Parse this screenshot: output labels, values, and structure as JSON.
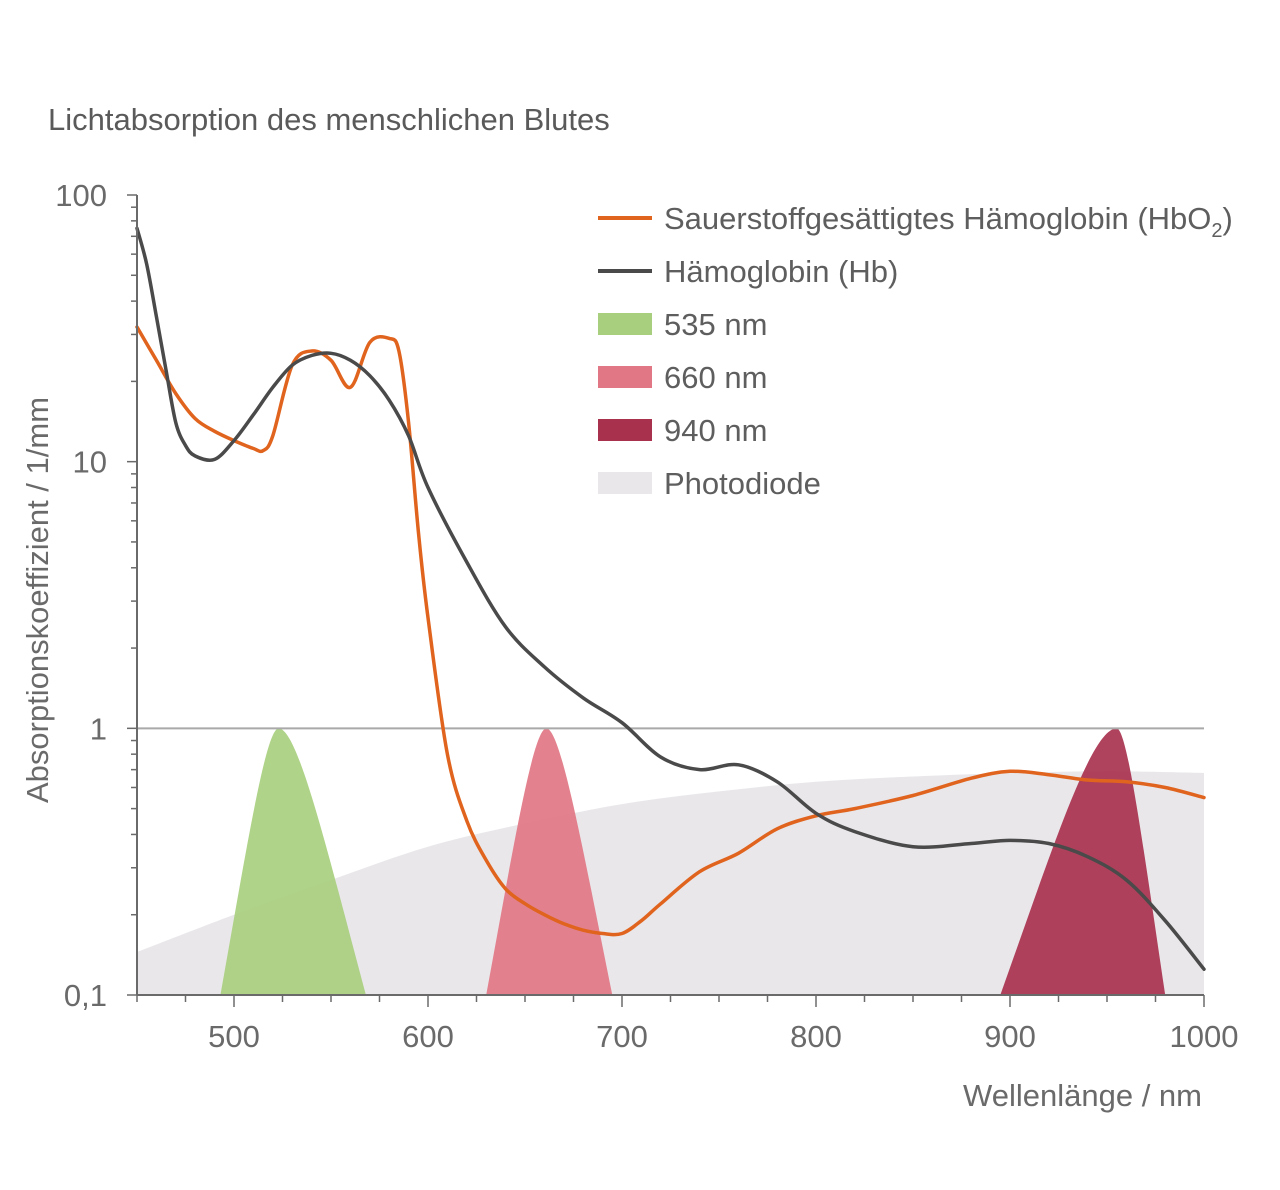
{
  "chart_data": {
    "type": "line",
    "title": "Lichtabsorption des menschlichen Blutes",
    "xlabel": "Wellenlänge / nm",
    "ylabel": "Absorptionskoeffizient / 1/mm",
    "yscale": "log",
    "xlim": [
      450,
      1000
    ],
    "ylim": [
      0.1,
      100
    ],
    "x_ticks": [
      500,
      600,
      700,
      800,
      900,
      1000
    ],
    "x_tick_labels": [
      "500",
      "600",
      "700",
      "800",
      "900",
      "1000"
    ],
    "y_ticks": [
      0.1,
      1,
      10,
      100
    ],
    "y_tick_labels": [
      "0,1",
      "1",
      "10",
      "100"
    ],
    "reference_line_y": 1,
    "legend_position": "top-right",
    "legend": [
      {
        "key": "hbo2",
        "label": "Sauerstoffgesättigtes Hämoglobin (HbO",
        "sub": "2",
        "suffix": ")",
        "kind": "line",
        "color": "#e0641e"
      },
      {
        "key": "hb",
        "label": "Hämoglobin (Hb)",
        "kind": "line",
        "color": "#4a4a4a"
      },
      {
        "key": "g535",
        "label": "535 nm",
        "kind": "area",
        "color": "#a8cf7e"
      },
      {
        "key": "g660",
        "label": "660 nm",
        "kind": "area",
        "color": "#e17784"
      },
      {
        "key": "g940",
        "label": "940 nm",
        "kind": "area",
        "color": "#a8324e"
      },
      {
        "key": "photodiode",
        "label": "Photodiode",
        "kind": "area",
        "color": "#e9e7ea"
      }
    ],
    "series": [
      {
        "key": "hbo2",
        "color": "#e0641e",
        "x": [
          450,
          460,
          470,
          480,
          490,
          500,
          510,
          515,
          520,
          530,
          540,
          550,
          560,
          570,
          580,
          585,
          590,
          595,
          600,
          610,
          620,
          630,
          640,
          650,
          660,
          670,
          680,
          690,
          700,
          710,
          720,
          740,
          760,
          780,
          800,
          820,
          850,
          880,
          900,
          920,
          940,
          960,
          980,
          1000
        ],
        "y": [
          32,
          24,
          18,
          14.5,
          13,
          12,
          11.2,
          11,
          12.5,
          23,
          26,
          24,
          19,
          28,
          29,
          26,
          14,
          5.5,
          2.6,
          0.8,
          0.45,
          0.32,
          0.25,
          0.22,
          0.2,
          0.185,
          0.175,
          0.17,
          0.17,
          0.19,
          0.22,
          0.29,
          0.34,
          0.42,
          0.47,
          0.5,
          0.56,
          0.65,
          0.69,
          0.67,
          0.64,
          0.63,
          0.6,
          0.55
        ]
      },
      {
        "key": "hb",
        "color": "#4a4a4a",
        "x": [
          450,
          455,
          460,
          465,
          470,
          475,
          480,
          490,
          500,
          510,
          520,
          530,
          540,
          550,
          560,
          570,
          580,
          590,
          600,
          620,
          640,
          660,
          680,
          700,
          720,
          740,
          760,
          780,
          800,
          820,
          850,
          880,
          900,
          920,
          940,
          960,
          980,
          1000
        ],
        "y": [
          75,
          55,
          35,
          22,
          14,
          11.5,
          10.5,
          10.2,
          12,
          15,
          19,
          23,
          25,
          25.5,
          24,
          21,
          17,
          12.5,
          8,
          4.2,
          2.4,
          1.7,
          1.3,
          1.05,
          0.78,
          0.7,
          0.73,
          0.63,
          0.48,
          0.41,
          0.36,
          0.37,
          0.38,
          0.37,
          0.33,
          0.27,
          0.19,
          0.125
        ]
      }
    ],
    "bands": [
      {
        "key": "g535",
        "label": "535 nm",
        "color": "#a8cf7e",
        "x_start": 493,
        "x_peak": 523,
        "x_end": 568,
        "y_peak": 1
      },
      {
        "key": "g660",
        "label": "660 nm",
        "color": "#e17784",
        "x_start": 630,
        "x_peak": 661,
        "x_end": 695,
        "y_peak": 1
      },
      {
        "key": "g940",
        "label": "940 nm",
        "color": "#a8324e",
        "x_start": 895,
        "x_peak": 955,
        "x_end": 980,
        "y_peak": 1
      }
    ],
    "photodiode": {
      "label": "Photodiode",
      "color": "#e9e7ea",
      "x": [
        450,
        500,
        550,
        600,
        650,
        700,
        750,
        800,
        850,
        900,
        950,
        1000
      ],
      "y": [
        0.145,
        0.2,
        0.27,
        0.36,
        0.44,
        0.52,
        0.58,
        0.63,
        0.66,
        0.68,
        0.69,
        0.68
      ]
    }
  }
}
